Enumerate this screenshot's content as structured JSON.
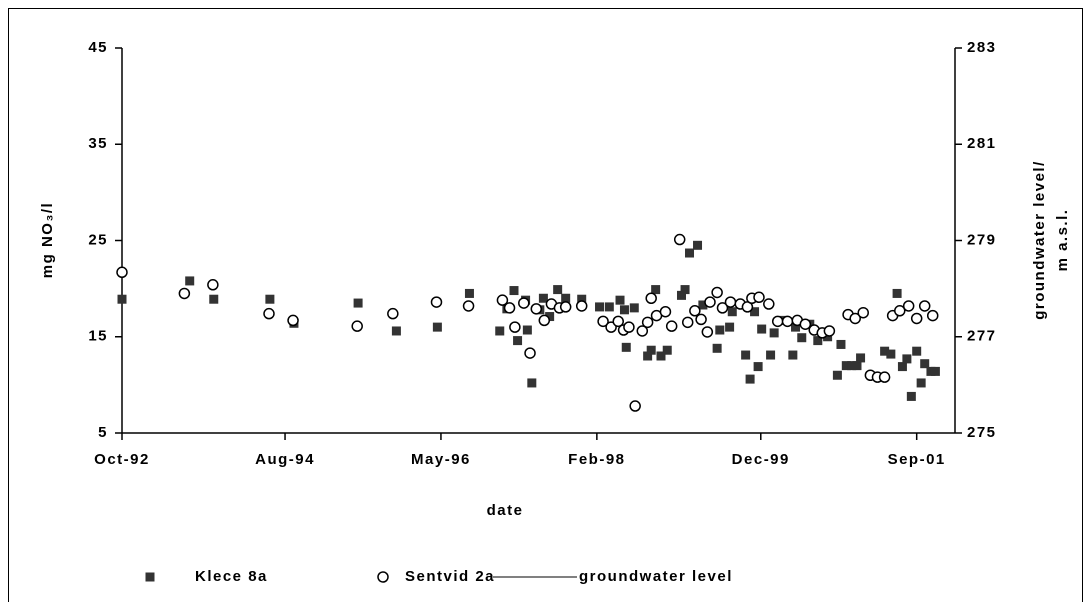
{
  "chart_data": {
    "type": "scatter",
    "y_label": "mg NO₃/l",
    "y2_label": [
      "groundwater level/",
      "m a.s.l."
    ],
    "x_label": "date",
    "xlim": [
      1992.75,
      2002.1
    ],
    "xticks": [
      {
        "value": 1992.75,
        "label": "Oct-92"
      },
      {
        "value": 1994.58,
        "label": "Aug-94"
      },
      {
        "value": 1996.33,
        "label": "May-96"
      },
      {
        "value": 1998.08,
        "label": "Feb-98"
      },
      {
        "value": 1999.92,
        "label": "Dec-99"
      },
      {
        "value": 2001.67,
        "label": "Sep-01"
      }
    ],
    "ylim": [
      5,
      45
    ],
    "yticks": [
      5,
      15,
      25,
      35,
      45
    ],
    "y2lim": [
      275,
      283
    ],
    "y2ticks": [
      275,
      277,
      279,
      281,
      283
    ],
    "series": [
      {
        "name": "Klece 8a",
        "color": "#333333",
        "marker": "square",
        "x": [
          1992.75,
          1993.51,
          1993.78,
          1994.41,
          1994.68,
          1995.4,
          1995.83,
          1996.29,
          1996.65,
          1996.99,
          1997.07,
          1997.15,
          1997.19,
          1997.28,
          1997.3,
          1997.35,
          1997.44,
          1997.48,
          1997.55,
          1997.64,
          1997.73,
          1997.91,
          1998.11,
          1998.22,
          1998.34,
          1998.39,
          1998.41,
          1998.5,
          1998.65,
          1998.69,
          1998.74,
          1998.8,
          1998.87,
          1999.03,
          1999.07,
          1999.12,
          1999.21,
          1999.27,
          1999.43,
          1999.46,
          1999.57,
          1999.6,
          1999.75,
          1999.8,
          1999.85,
          1999.89,
          1999.93,
          2000.03,
          2000.07,
          2000.18,
          2000.28,
          2000.31,
          2000.38,
          2000.47,
          2000.56,
          2000.67,
          2000.78,
          2000.82,
          2000.88,
          2000.94,
          2001.0,
          2001.04,
          2001.31,
          2001.38,
          2001.45,
          2001.51,
          2001.56,
          2001.61,
          2001.67,
          2001.72,
          2001.76,
          2001.83,
          2001.88
        ],
        "values": [
          18.9,
          20.8,
          18.9,
          18.9,
          16.4,
          18.5,
          15.6,
          16.0,
          19.5,
          15.6,
          17.9,
          19.8,
          14.6,
          18.8,
          15.7,
          10.2,
          17.8,
          19.0,
          17.1,
          19.9,
          19.0,
          18.9,
          18.1,
          18.1,
          18.8,
          17.8,
          13.9,
          18.0,
          13.0,
          13.6,
          19.9,
          13.0,
          13.6,
          19.3,
          19.9,
          23.7,
          24.5,
          18.3,
          13.8,
          15.7,
          16.0,
          17.6,
          13.1,
          10.6,
          17.6,
          11.9,
          15.8,
          13.1,
          15.4,
          16.7,
          13.1,
          16.0,
          14.9,
          16.3,
          14.6,
          15.0,
          11.0,
          14.2,
          12.0,
          12.0,
          12.0,
          12.8,
          13.5,
          13.2,
          19.5,
          11.9,
          12.7,
          8.8,
          13.5,
          10.2,
          12.2,
          11.4,
          11.4
        ]
      },
      {
        "name": "Sentvid 2a",
        "color": "#000000",
        "marker": "circle",
        "x": [
          1992.75,
          1993.45,
          1993.77,
          1994.4,
          1994.67,
          1995.39,
          1995.79,
          1996.28,
          1996.64,
          1997.02,
          1997.1,
          1997.16,
          1997.26,
          1997.33,
          1997.4,
          1997.49,
          1997.57,
          1997.66,
          1997.73,
          1997.91,
          1998.15,
          1998.24,
          1998.32,
          1998.38,
          1998.44,
          1998.51,
          1998.59,
          1998.65,
          1998.69,
          1998.75,
          1998.85,
          1998.92,
          1999.01,
          1999.1,
          1999.18,
          1999.25,
          1999.32,
          1999.35,
          1999.43,
          1999.49,
          1999.58,
          1999.69,
          1999.77,
          1999.82,
          1999.9,
          2000.01,
          2000.11,
          2000.22,
          2000.33,
          2000.42,
          2000.52,
          2000.61,
          2000.69,
          2000.9,
          2000.98,
          2001.07,
          2001.15,
          2001.23,
          2001.31,
          2001.4,
          2001.48,
          2001.58,
          2001.67,
          2001.76,
          2001.85
        ],
        "values": [
          21.7,
          19.5,
          20.4,
          17.4,
          16.7,
          16.1,
          17.4,
          18.6,
          18.2,
          18.8,
          18.0,
          16.0,
          18.5,
          13.3,
          17.9,
          16.7,
          18.4,
          18.0,
          18.1,
          18.2,
          16.6,
          16.0,
          16.6,
          15.7,
          16.0,
          7.8,
          15.6,
          16.5,
          19.0,
          17.2,
          17.6,
          16.1,
          25.1,
          16.5,
          17.7,
          16.8,
          15.5,
          18.6,
          19.6,
          18.0,
          18.6,
          18.4,
          18.1,
          19.0,
          19.1,
          18.4,
          16.6,
          16.6,
          16.7,
          16.3,
          15.7,
          15.4,
          15.6,
          17.3,
          16.9,
          17.5,
          11.0,
          10.8,
          10.8,
          17.2,
          17.7,
          18.2,
          16.9,
          18.2,
          17.2
        ]
      },
      {
        "name": "groundwater level",
        "color": "#808080",
        "marker": "line",
        "axis": "y2",
        "x": [],
        "values": []
      }
    ]
  }
}
